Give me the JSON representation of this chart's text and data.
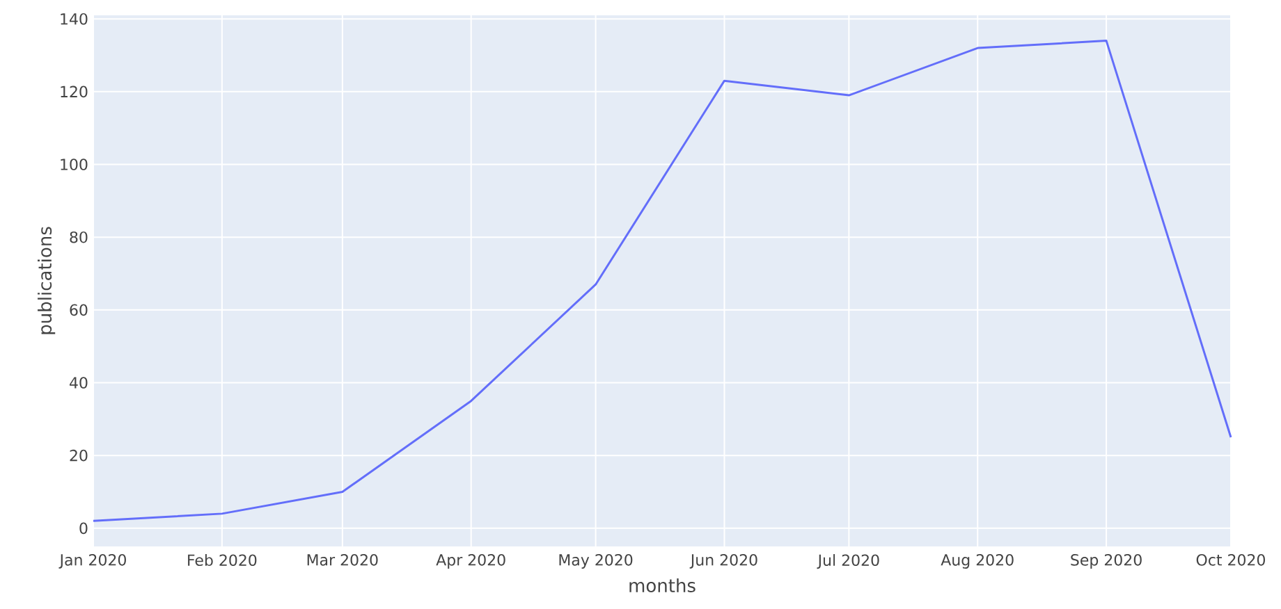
{
  "chart_data": {
    "type": "line",
    "xlabel": "months",
    "ylabel": "publications",
    "x": [
      "2020-01",
      "2020-02",
      "2020-03",
      "2020-04",
      "2020-05",
      "2020-06",
      "2020-07",
      "2020-08",
      "2020-09",
      "2020-10"
    ],
    "series": [
      {
        "color": "#636efa",
        "values": [
          2,
          4,
          10,
          35,
          67,
          123,
          119,
          132,
          134,
          25
        ]
      }
    ],
    "xlim": [
      "2020-01",
      "2020-10"
    ],
    "xticks": [
      {
        "value": "2020-01",
        "label": "Jan 2020"
      },
      {
        "value": "2020-02",
        "label": "Feb 2020"
      },
      {
        "value": "2020-03",
        "label": "Mar 2020"
      },
      {
        "value": "2020-04",
        "label": "Apr 2020"
      },
      {
        "value": "2020-05",
        "label": "May 2020"
      },
      {
        "value": "2020-06",
        "label": "Jun 2020"
      },
      {
        "value": "2020-07",
        "label": "Jul 2020"
      },
      {
        "value": "2020-08",
        "label": "Aug 2020"
      },
      {
        "value": "2020-09",
        "label": "Sep 2020"
      },
      {
        "value": "2020-10",
        "label": "Oct 2020"
      }
    ],
    "ylim": [
      -5,
      141
    ],
    "yticks": [
      0,
      20,
      40,
      60,
      80,
      100,
      120,
      140
    ],
    "grid": true,
    "marker": "none",
    "line_style": "solid"
  }
}
